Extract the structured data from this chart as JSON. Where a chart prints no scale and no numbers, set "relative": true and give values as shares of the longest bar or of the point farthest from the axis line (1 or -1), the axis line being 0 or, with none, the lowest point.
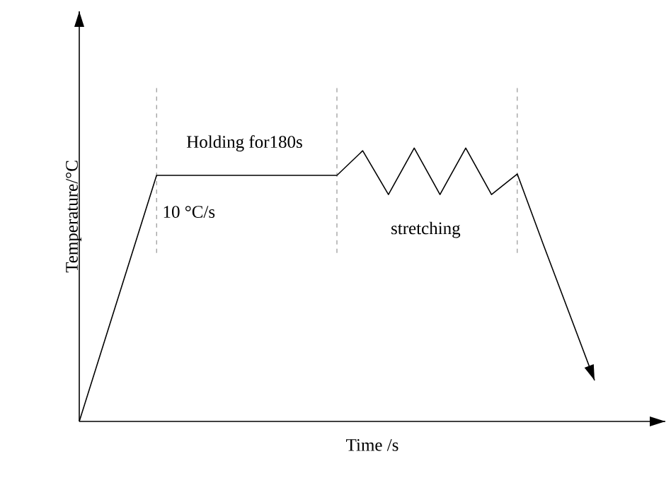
{
  "chart_data": {
    "type": "line",
    "relative": true,
    "xlabel": "Time /s",
    "ylabel": "Temperature/°C",
    "categories": [
      null,
      null,
      null,
      null,
      null,
      null,
      null,
      null,
      null,
      null,
      null,
      null,
      null,
      null,
      null,
      null,
      null,
      null,
      null,
      null,
      null
    ],
    "series": [
      {
        "color": "#000000",
        "values": [
          0,
          0.3,
          0.6,
          0.9,
          0.9,
          0.9,
          0.9,
          0.9,
          0.9,
          0.9,
          0.9,
          0.99,
          0.83,
          1,
          0.83,
          1,
          0.83,
          0.905,
          0.65,
          0.4,
          0.15
        ]
      }
    ],
    "annotations": [
      "Holding for180s",
      "10 °C/s",
      "stretching"
    ],
    "marker": "none",
    "line_style": "solid"
  }
}
